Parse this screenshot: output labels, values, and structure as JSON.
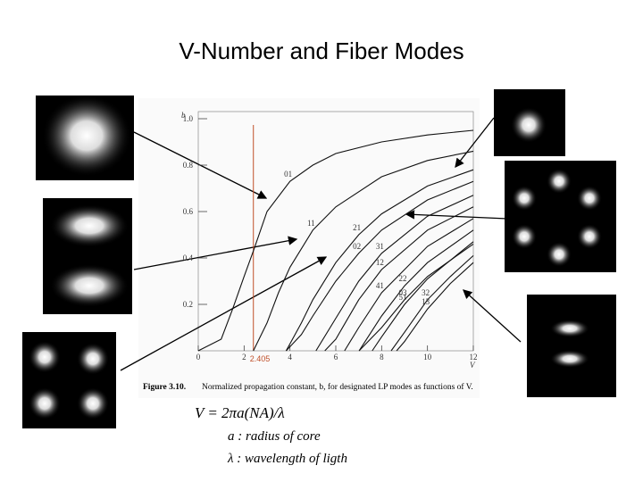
{
  "title": "V-Number and Fiber Modes",
  "chart_data": {
    "type": "line",
    "x_label": "V",
    "y_label": "b",
    "xlim": [
      0,
      12
    ],
    "ylim": [
      0,
      1
    ],
    "xticks": [
      0,
      2,
      4,
      6,
      8,
      10,
      12
    ],
    "yticks": [
      0.2,
      0.4,
      0.6,
      0.8,
      {
        "value": 1,
        "label": "1.0"
      }
    ],
    "cutoff_marker": {
      "value": 2.405,
      "color": "#c0502a"
    },
    "series": [
      {
        "name": "01",
        "color": "#111111",
        "x": [
          0,
          1,
          1.5,
          2,
          2.405,
          3,
          4,
          5,
          6,
          8,
          10,
          12
        ],
        "values": [
          0,
          0.05,
          0.18,
          0.32,
          0.43,
          0.6,
          0.73,
          0.8,
          0.85,
          0.9,
          0.93,
          0.95
        ]
      },
      {
        "name": "11",
        "color": "#111111",
        "x": [
          2.405,
          3,
          3.5,
          4,
          5,
          6,
          8,
          10,
          12
        ],
        "values": [
          0,
          0.12,
          0.25,
          0.36,
          0.52,
          0.62,
          0.75,
          0.82,
          0.86
        ]
      },
      {
        "name": "21",
        "color": "#111111",
        "x": [
          3.832,
          4.5,
          5,
          6,
          7,
          8,
          10,
          12
        ],
        "values": [
          0,
          0.12,
          0.22,
          0.38,
          0.5,
          0.59,
          0.71,
          0.78
        ]
      },
      {
        "name": "02",
        "color": "#111111",
        "x": [
          3.832,
          4.5,
          5,
          6,
          7,
          8,
          10,
          12
        ],
        "values": [
          0,
          0.07,
          0.15,
          0.3,
          0.42,
          0.52,
          0.65,
          0.73
        ]
      },
      {
        "name": "31",
        "color": "#111111",
        "x": [
          5.136,
          6,
          7,
          8,
          10,
          12
        ],
        "values": [
          0,
          0.14,
          0.3,
          0.42,
          0.58,
          0.67
        ]
      },
      {
        "name": "12",
        "color": "#111111",
        "x": [
          5.52,
          6,
          7,
          8,
          10,
          12
        ],
        "values": [
          0,
          0.05,
          0.22,
          0.35,
          0.52,
          0.62
        ]
      },
      {
        "name": "41",
        "color": "#111111",
        "x": [
          6.38,
          7,
          8,
          10,
          12
        ],
        "values": [
          0,
          0.1,
          0.25,
          0.45,
          0.57
        ]
      },
      {
        "name": "22",
        "color": "#111111",
        "x": [
          7.016,
          8,
          9,
          10,
          12
        ],
        "values": [
          0,
          0.15,
          0.28,
          0.38,
          0.52
        ]
      },
      {
        "name": "03",
        "color": "#111111",
        "x": [
          7.016,
          8,
          9,
          10,
          12
        ],
        "values": [
          0,
          0.1,
          0.22,
          0.32,
          0.46
        ]
      },
      {
        "name": "51",
        "color": "#111111",
        "x": [
          7.588,
          8,
          9,
          10,
          12
        ],
        "values": [
          0,
          0.06,
          0.2,
          0.31,
          0.47
        ]
      },
      {
        "name": "32",
        "color": "#111111",
        "x": [
          8.417,
          9,
          10,
          11,
          12
        ],
        "values": [
          0,
          0.08,
          0.22,
          0.32,
          0.41
        ]
      },
      {
        "name": "13",
        "color": "#111111",
        "x": [
          8.654,
          9,
          10,
          11,
          12
        ],
        "values": [
          0,
          0.04,
          0.18,
          0.29,
          0.38
        ]
      }
    ]
  },
  "caption_label": "Figure 3.10.",
  "caption": "Normalized propagation constant, b, for designated LP modes as functions of V.",
  "formula": "V = 2πa(NA)/λ",
  "notes": [
    "a : radius of core",
    "λ : wavelength of ligth"
  ]
}
